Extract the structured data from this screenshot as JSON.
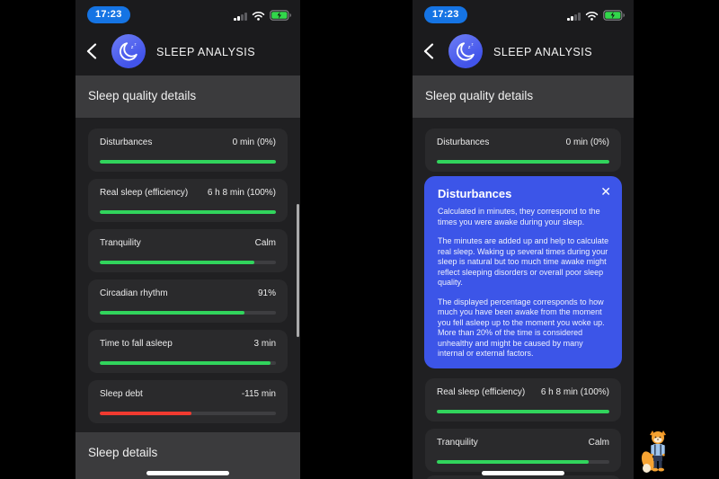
{
  "colors": {
    "green": "#31d45c",
    "red": "#f13a30",
    "pill_blue": "#1574e4",
    "modal_blue": "#3c55e8",
    "battery_green": "#32d74b"
  },
  "status_bar": {
    "time": "17:23"
  },
  "header": {
    "title": "SLEEP ANALYSIS"
  },
  "sections": {
    "quality": "Sleep quality details",
    "details": "Sleep details"
  },
  "metrics": [
    {
      "label": "Disturbances",
      "value": "0 min (0%)",
      "percent": 100,
      "color": "green"
    },
    {
      "label": "Real sleep (efficiency)",
      "value": "6 h 8 min (100%)",
      "percent": 100,
      "color": "green"
    },
    {
      "label": "Tranquility",
      "value": "Calm",
      "percent": 88,
      "color": "green"
    },
    {
      "label": "Circadian rhythm",
      "value": "91%",
      "percent": 82,
      "color": "green"
    },
    {
      "label": "Time to fall asleep",
      "value": "3 min",
      "percent": 97,
      "color": "green"
    },
    {
      "label": "Sleep debt",
      "value": "-115 min",
      "percent": 52,
      "color": "red"
    }
  ],
  "modal": {
    "title": "Disturbances",
    "close_label": "✕",
    "paragraphs": [
      "Calculated in minutes, they correspond to the times you were awake during your sleep.",
      "The minutes are added up and help to calculate real sleep. Waking up several times during your sleep is natural but too much time awake might reflect sleeping disorders or overall poor sleep quality.",
      "The displayed percentage corresponds to how much you have been awake from the moment you fell asleep up to the moment you woke up. More than 20% of the time is considered unhealthy and might be caused by many internal or external factors."
    ]
  },
  "mascot": {
    "name": "fox-character"
  }
}
